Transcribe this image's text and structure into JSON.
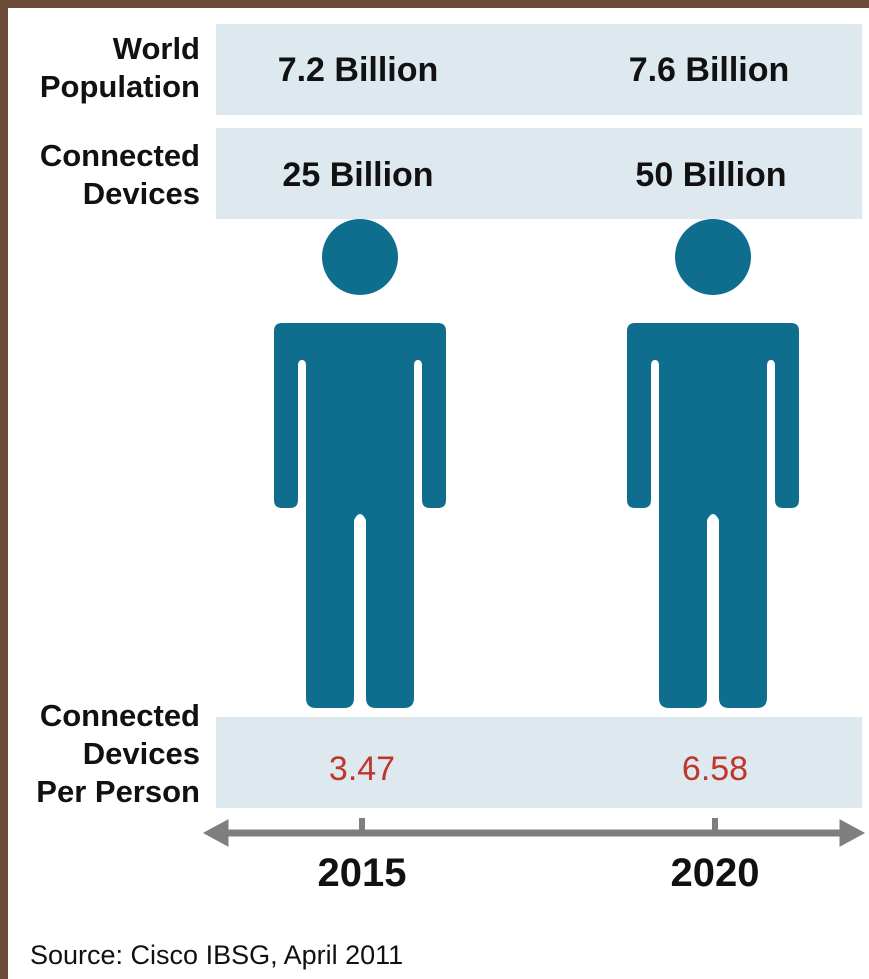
{
  "rows": {
    "population": {
      "label": "World\nPopulation"
    },
    "devices": {
      "label": "Connected\nDevices"
    },
    "ratio": {
      "label": "Connected\nDevices\nPer Person"
    }
  },
  "chart_data": {
    "type": "table",
    "categories": [
      "2015",
      "2020"
    ],
    "series": [
      {
        "name": "World Population",
        "values": [
          "7.2 Billion",
          "7.6 Billion"
        ]
      },
      {
        "name": "Connected Devices",
        "values": [
          "25 Billion",
          "50 Billion"
        ]
      },
      {
        "name": "Connected Devices Per Person",
        "values": [
          "3.47",
          "6.58"
        ]
      }
    ]
  },
  "source": "Source: Cisco IBSG, April 2011",
  "colors": {
    "person": "#0f6e8e",
    "band": "#dde8ef",
    "ratio": "#c0362c",
    "axis": "#7f7f7f"
  }
}
